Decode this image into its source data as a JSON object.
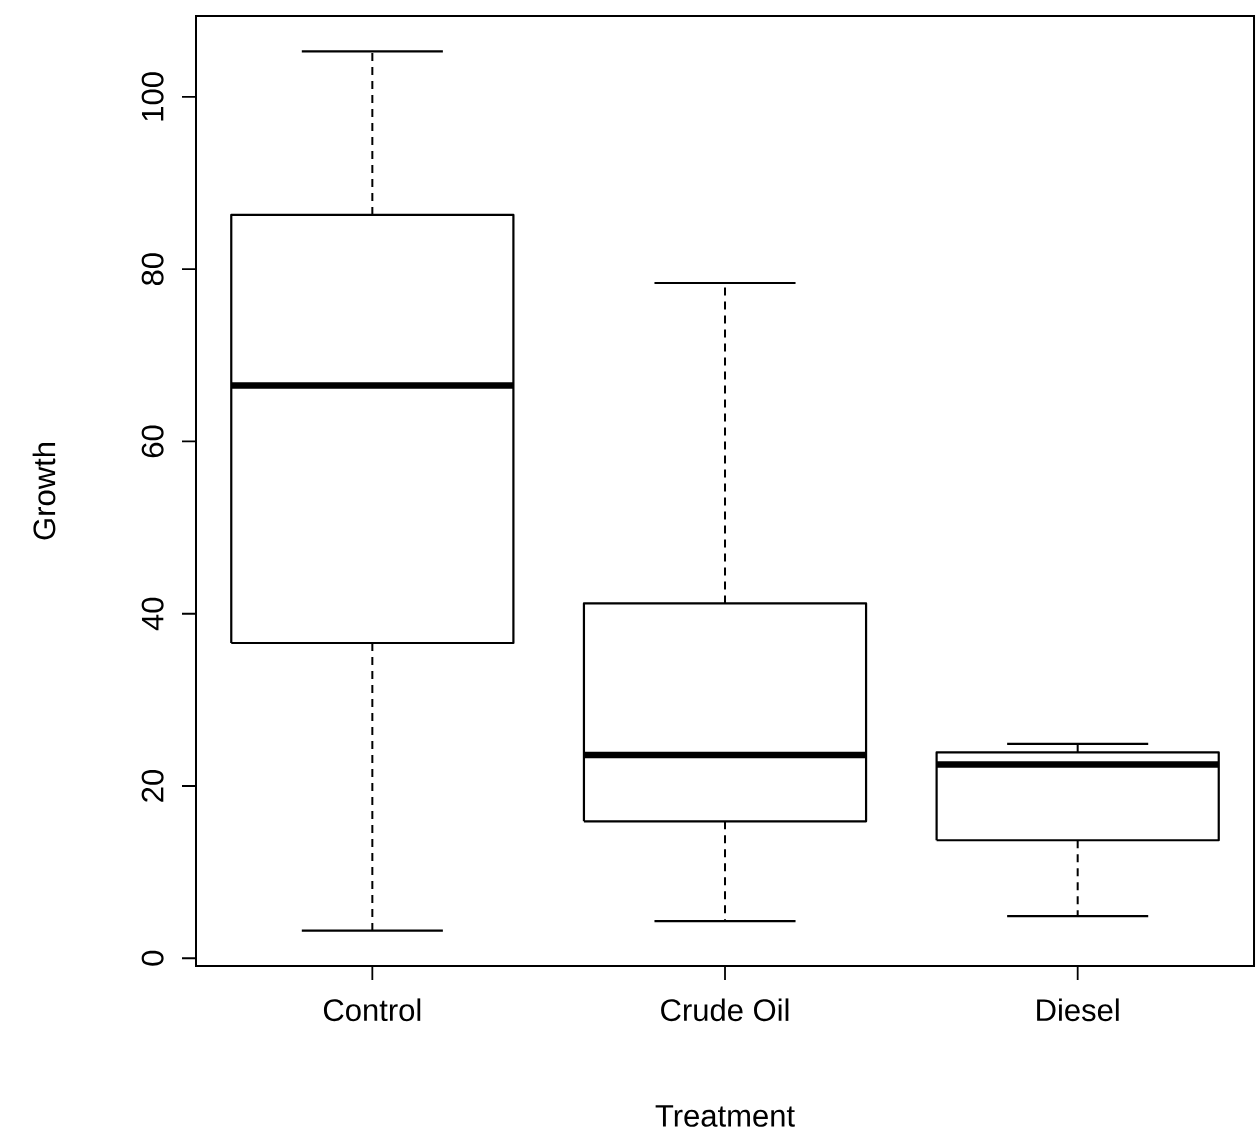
{
  "chart_data": {
    "type": "box",
    "xlabel": "Treatment",
    "ylabel": "Growth",
    "categories": [
      "Control",
      "Crude Oil",
      "Diesel"
    ],
    "boxes": [
      {
        "low": 3.2,
        "q1": 36.6,
        "median": 66.5,
        "q3": 86.3,
        "high": 105.3
      },
      {
        "low": 4.3,
        "q1": 15.9,
        "median": 23.6,
        "q3": 41.2,
        "high": 78.4
      },
      {
        "low": 4.9,
        "q1": 13.7,
        "median": 22.5,
        "q3": 23.9,
        "high": 24.9
      }
    ],
    "ylim": [
      -0.9,
      109.4
    ],
    "yticks": [
      0,
      20,
      40,
      60,
      80,
      100
    ]
  }
}
